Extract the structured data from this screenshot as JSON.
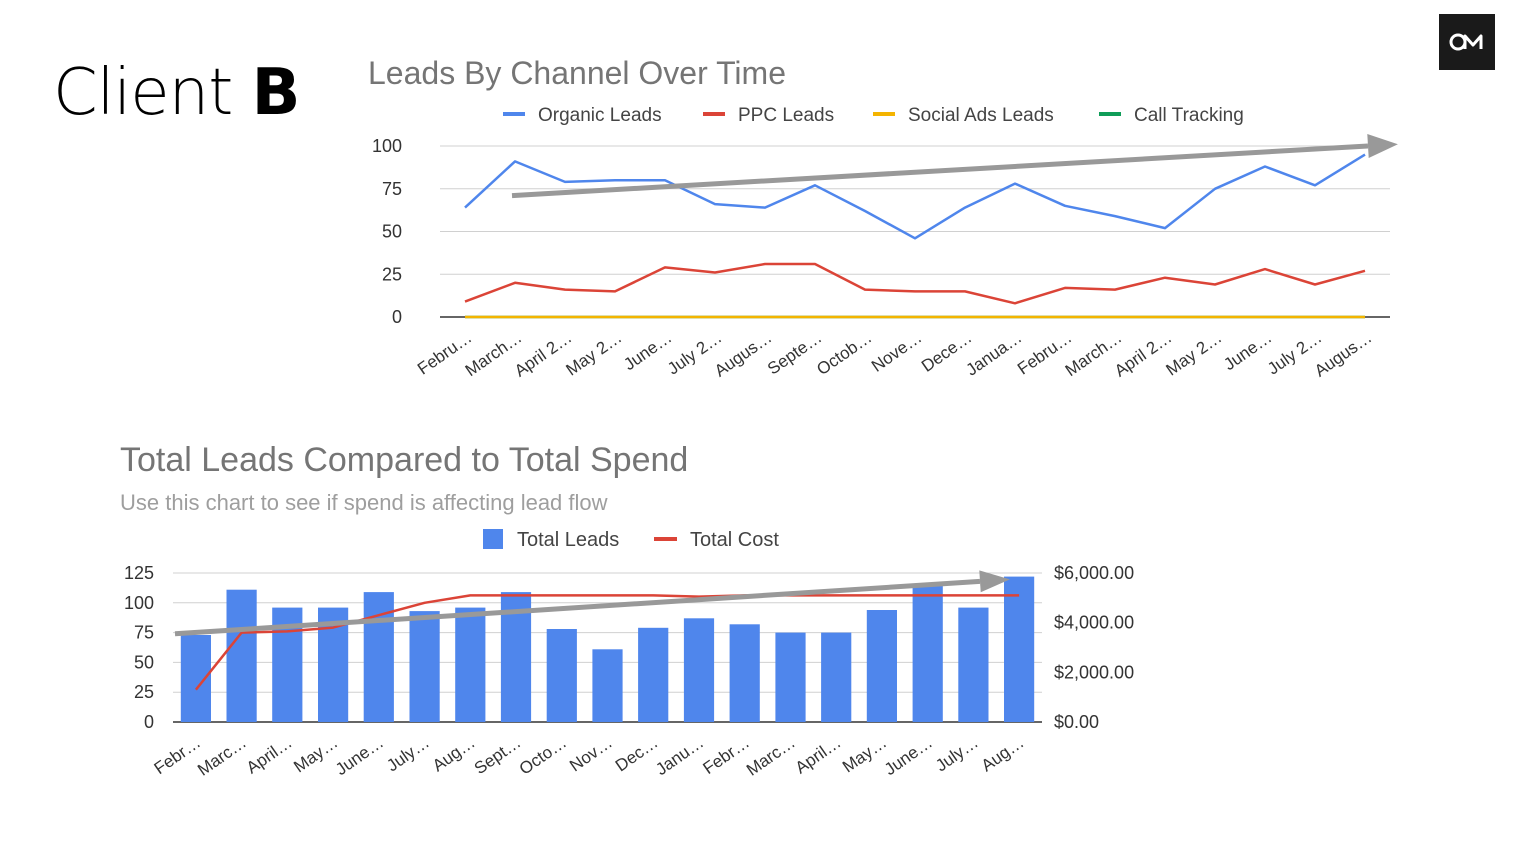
{
  "page": {
    "title_prefix": "Client",
    "title_bold": "B",
    "logo": {
      "icon": "om-logo-icon",
      "color": "#1a1a1a"
    }
  },
  "chart_data": [
    {
      "type": "line",
      "title": "Leads By Channel Over Time",
      "categories": [
        "Febru…",
        "March…",
        "April 2…",
        "May 2…",
        "June…",
        "July 2…",
        "Augus…",
        "Septe…",
        "Octob…",
        "Nove…",
        "Dece…",
        "Janua…",
        "Febru…",
        "March…",
        "April 2…",
        "May 2…",
        "June…",
        "July 2…",
        "Augus…"
      ],
      "series": [
        {
          "name": "Organic Leads",
          "color": "#4f86ec",
          "values": [
            64,
            91,
            79,
            80,
            80,
            66,
            64,
            77,
            62,
            46,
            64,
            78,
            65,
            59,
            52,
            75,
            88,
            77,
            95
          ]
        },
        {
          "name": "PPC Leads",
          "color": "#db4437",
          "values": [
            9,
            20,
            16,
            15,
            29,
            26,
            31,
            31,
            16,
            15,
            15,
            8,
            17,
            16,
            23,
            19,
            28,
            19,
            27
          ]
        },
        {
          "name": "Social Ads Leads",
          "color": "#f4b400",
          "values": [
            0,
            0,
            0,
            0,
            0,
            0,
            0,
            0,
            0,
            0,
            0,
            0,
            0,
            0,
            0,
            0,
            0,
            0,
            0
          ]
        },
        {
          "name": "Call Tracking",
          "color": "#0f9d58",
          "values": [
            0,
            0,
            0,
            0,
            0,
            0,
            0,
            0,
            0,
            0,
            0,
            0,
            0,
            0,
            0,
            0,
            0,
            0,
            0
          ]
        }
      ],
      "yticks": [
        "0",
        "25",
        "50",
        "75",
        "100"
      ],
      "ylim": [
        0,
        100
      ],
      "legend": "top",
      "grid": true,
      "trend_arrow": {
        "from": 71,
        "to": 100
      }
    },
    {
      "type": "bar",
      "title": "Total Leads Compared to Total Spend",
      "subtitle": "Use this chart to see if spend is affecting lead flow",
      "categories": [
        "Febr…",
        "Marc…",
        "April…",
        "May…",
        "June…",
        "July…",
        "Aug…",
        "Sept…",
        "Octo…",
        "Nov…",
        "Dec…",
        "Janu…",
        "Febr…",
        "Marc…",
        "April…",
        "May…",
        "June…",
        "July…",
        "Aug…"
      ],
      "series": [
        {
          "name": "Total Leads",
          "color": "#4f86ec",
          "axis": "left",
          "values": [
            73,
            111,
            96,
            96,
            109,
            93,
            96,
            109,
            78,
            61,
            79,
            87,
            82,
            75,
            75,
            94,
            116,
            96,
            122
          ]
        },
        {
          "name": "Total Cost",
          "color": "#db4437",
          "axis": "right",
          "values": [
            1300,
            3600,
            3650,
            3800,
            4300,
            4800,
            5100,
            5100,
            5100,
            5100,
            5100,
            5050,
            5100,
            5100,
            5100,
            5100,
            5100,
            5100,
            5100
          ]
        }
      ],
      "yticks_left": [
        "0",
        "25",
        "50",
        "75",
        "100",
        "125"
      ],
      "yticks_right": [
        "$0.00",
        "$2,000.00",
        "$4,000.00",
        "$6,000.00"
      ],
      "ylim_left": [
        0,
        125
      ],
      "ylim_right": [
        0,
        6000
      ],
      "legend": "top",
      "grid": true,
      "trend_arrow": {
        "from": 74,
        "to": 118
      }
    }
  ]
}
